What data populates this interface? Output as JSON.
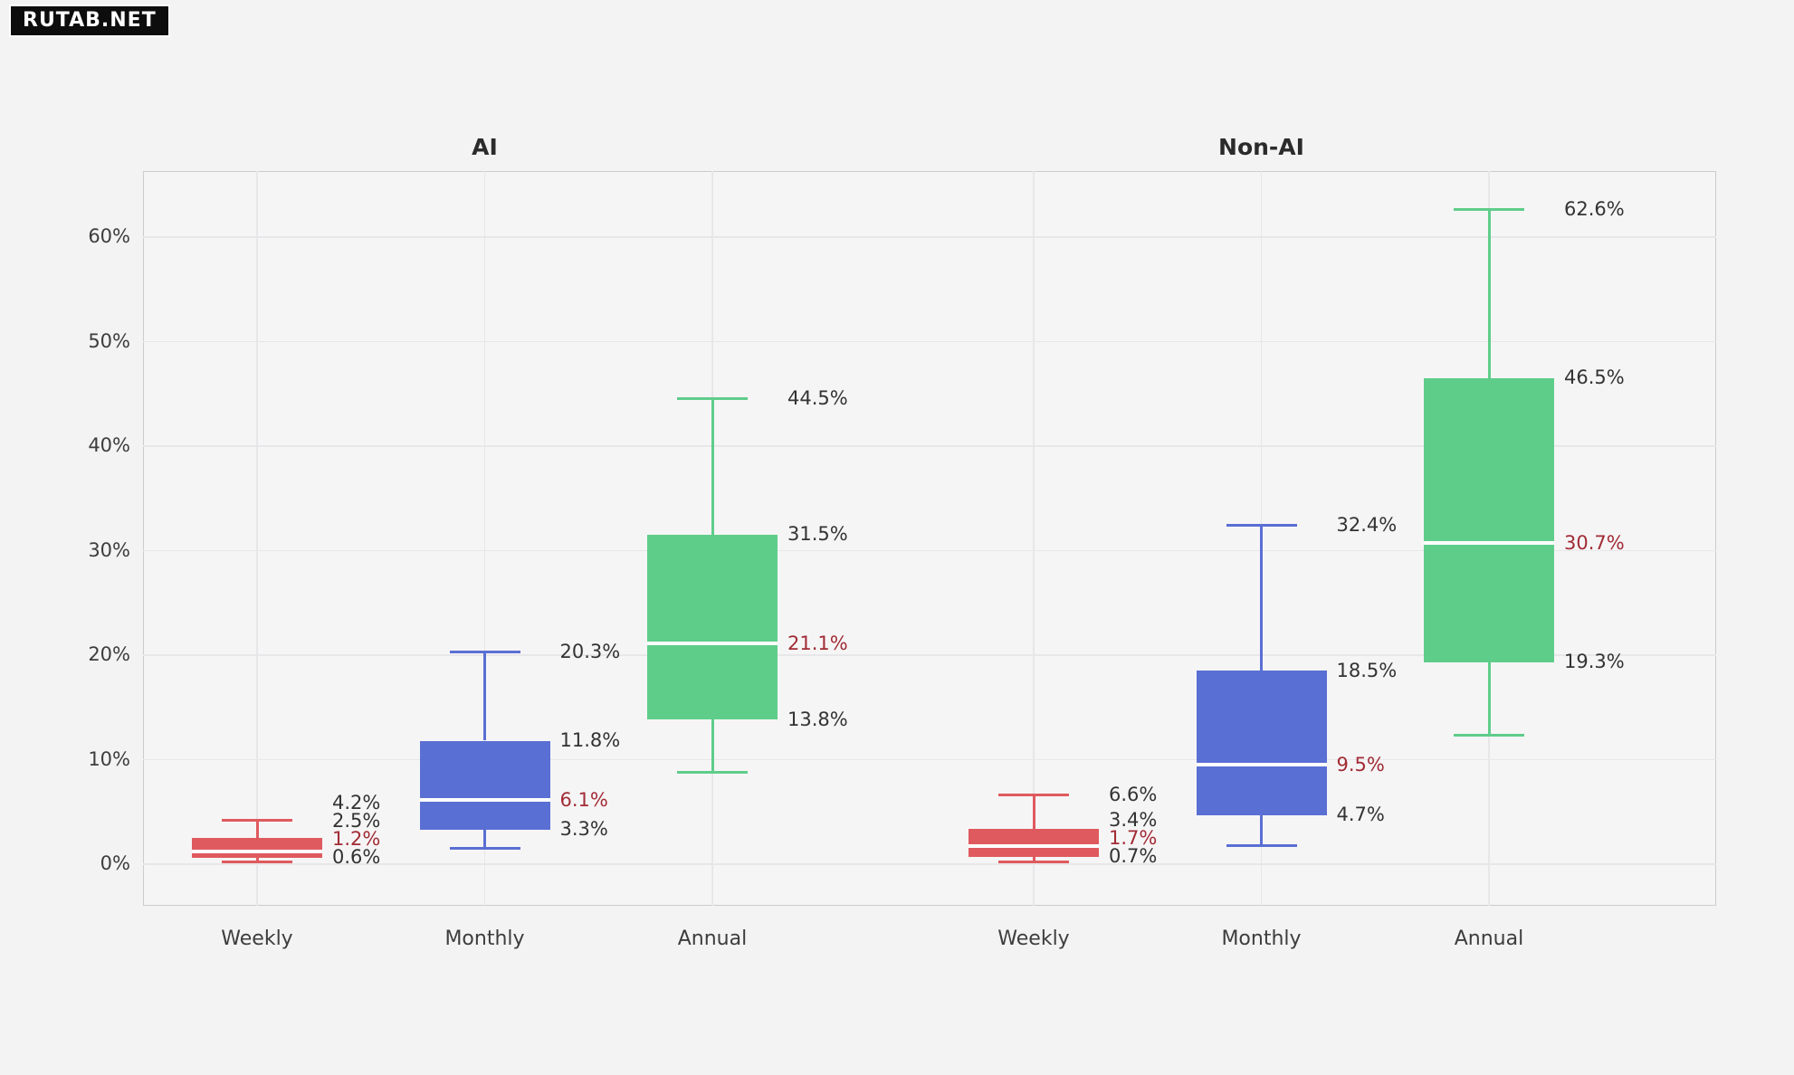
{
  "badge": {
    "text": "RUTAB.NET"
  },
  "chart_data": {
    "type": "boxplot",
    "orientation": "vertical",
    "unit": "%",
    "grid": true,
    "legend": "none",
    "ylim_display": [
      -4,
      66.3
    ],
    "yticks": [
      0,
      10,
      20,
      30,
      40,
      50,
      60
    ],
    "ytick_labels": [
      "0%",
      "10%",
      "20%",
      "30%",
      "40%",
      "50%",
      "60%"
    ],
    "colors": {
      "red": "#DF5A5E",
      "blue": "#5A6FD3",
      "green": "#5FCD8A",
      "median_line": "#FFFFFF",
      "annotation_text": "#333333",
      "median_annotation_text": "#A12C35",
      "axis_text": "#3D3D3D",
      "title_text": "#2B2B2B",
      "gridline": "#E7E7E9",
      "plot_background": "#F6F5F6",
      "page_background": "#F4F3F4",
      "badge_background": "#0D0D0D",
      "badge_text": "#FFFFFF"
    },
    "panels": [
      {
        "title": "AI",
        "categories": [
          "Weekly",
          "Monthly",
          "Annual"
        ],
        "boxes": [
          {
            "category": "Weekly",
            "color": "red",
            "whisker_low": 0.2,
            "q1": 0.6,
            "median": 1.2,
            "q3": 2.5,
            "whisker_high": 4.2,
            "labels": [
              {
                "text": "4.2%",
                "value": 4.2,
                "median": false
              },
              {
                "text": "2.5%",
                "value": 2.5,
                "median": false
              },
              {
                "text": "1.2%",
                "value": 1.2,
                "median": true
              },
              {
                "text": "0.6%",
                "value": 0.6,
                "median": false
              }
            ]
          },
          {
            "category": "Monthly",
            "color": "blue",
            "whisker_low": 1.5,
            "q1": 3.3,
            "median": 6.1,
            "q3": 11.8,
            "whisker_high": 20.3,
            "labels": [
              {
                "text": "20.3%",
                "value": 20.3,
                "median": false
              },
              {
                "text": "11.8%",
                "value": 11.8,
                "median": false
              },
              {
                "text": "6.1%",
                "value": 6.1,
                "median": true
              },
              {
                "text": "3.3%",
                "value": 3.3,
                "median": false
              }
            ]
          },
          {
            "category": "Annual",
            "color": "green",
            "whisker_low": 8.8,
            "q1": 13.8,
            "median": 21.1,
            "q3": 31.5,
            "whisker_high": 44.5,
            "labels": [
              {
                "text": "44.5%",
                "value": 44.5,
                "median": false
              },
              {
                "text": "31.5%",
                "value": 31.5,
                "median": false
              },
              {
                "text": "21.1%",
                "value": 21.1,
                "median": true
              },
              {
                "text": "13.8%",
                "value": 13.8,
                "median": false
              }
            ]
          }
        ]
      },
      {
        "title": "Non-AI",
        "categories": [
          "Weekly",
          "Monthly",
          "Annual"
        ],
        "boxes": [
          {
            "category": "Weekly",
            "color": "red",
            "whisker_low": 0.2,
            "q1": 0.7,
            "median": 1.7,
            "q3": 3.4,
            "whisker_high": 6.6,
            "labels": [
              {
                "text": "6.6%",
                "value": 6.6,
                "median": false
              },
              {
                "text": "3.4%",
                "value": 3.4,
                "median": false
              },
              {
                "text": "1.7%",
                "value": 1.7,
                "median": true
              },
              {
                "text": "0.7%",
                "value": 0.7,
                "median": false
              }
            ]
          },
          {
            "category": "Monthly",
            "color": "blue",
            "whisker_low": 1.8,
            "q1": 4.7,
            "median": 9.5,
            "q3": 18.5,
            "whisker_high": 32.4,
            "labels": [
              {
                "text": "32.4%",
                "value": 32.4,
                "median": false
              },
              {
                "text": "18.5%",
                "value": 18.5,
                "median": false
              },
              {
                "text": "9.5%",
                "value": 9.5,
                "median": true
              },
              {
                "text": "4.7%",
                "value": 4.7,
                "median": false
              }
            ]
          },
          {
            "category": "Annual",
            "color": "green",
            "whisker_low": 12.3,
            "q1": 19.3,
            "median": 30.7,
            "q3": 46.5,
            "whisker_high": 62.6,
            "labels": [
              {
                "text": "62.6%",
                "value": 62.6,
                "median": false
              },
              {
                "text": "46.5%",
                "value": 46.5,
                "median": false
              },
              {
                "text": "30.7%",
                "value": 30.7,
                "median": true
              },
              {
                "text": "19.3%",
                "value": 19.3,
                "median": false
              }
            ]
          }
        ]
      }
    ]
  }
}
